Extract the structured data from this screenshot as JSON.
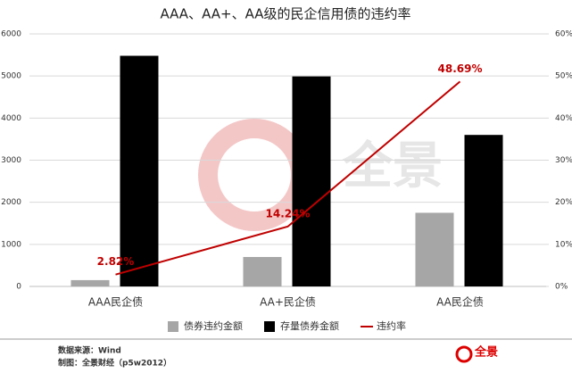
{
  "chart_data": {
    "type": "bar-line",
    "title": "AAA、AA+、AA级的民企信用债的违约率",
    "categories": [
      "AAA民企债",
      "AA+民企债",
      "AA民企债"
    ],
    "series": [
      {
        "name": "债券违约金额",
        "color": "#a6a6a6",
        "type": "bar",
        "values": [
          150,
          700,
          1750
        ]
      },
      {
        "name": "存量债券金额",
        "color": "#000000",
        "type": "bar",
        "values": [
          5480,
          4990,
          3600
        ]
      },
      {
        "name": "违约率",
        "color": "#c00000",
        "type": "line",
        "axis": "y2",
        "values": [
          2.82,
          14.24,
          48.69
        ],
        "value_labels": [
          "2.82%",
          "14.24%",
          "48.69%"
        ]
      }
    ],
    "ylim": [
      0,
      6000
    ],
    "yticks": [
      0,
      1000,
      2000,
      3000,
      4000,
      5000,
      6000
    ],
    "y2lim": [
      0,
      60
    ],
    "y2ticks": [
      {
        "value": 0,
        "label": "0%"
      },
      {
        "value": 10,
        "label": "10%"
      },
      {
        "value": 20,
        "label": "20%"
      },
      {
        "value": 30,
        "label": "30%"
      },
      {
        "value": 40,
        "label": "40%"
      },
      {
        "value": 50,
        "label": "50%"
      },
      {
        "value": 60,
        "label": "60%"
      }
    ],
    "grid": true,
    "legend": "bottom",
    "watermark": "全景",
    "source": "数据来源：Wind",
    "credit": "制图：全景财经（p5w2012）",
    "logo": "全景"
  }
}
